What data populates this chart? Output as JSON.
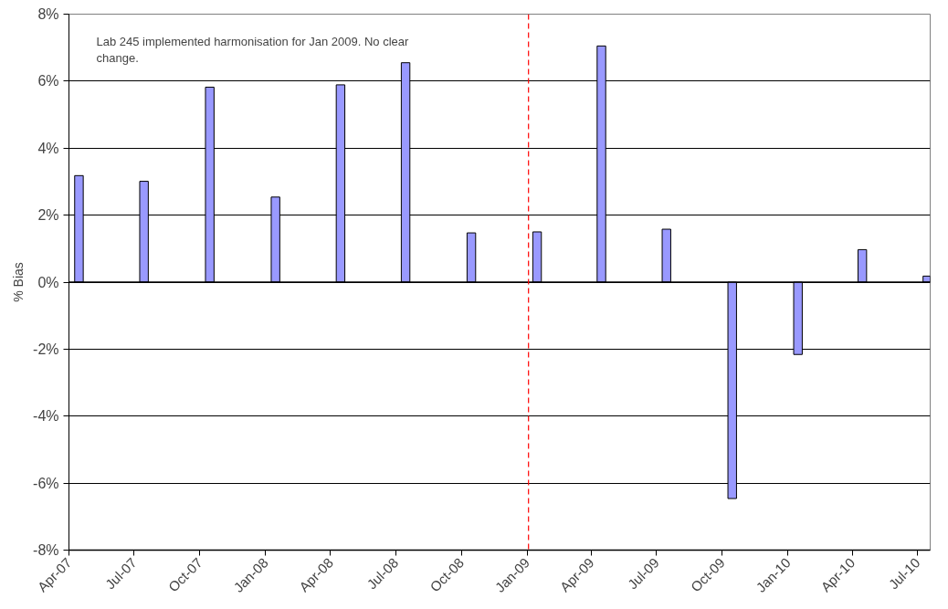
{
  "chart_data": {
    "type": "bar",
    "ylabel": "% Bias",
    "annotations": [
      "Lab 245 implemented harmonisation for Jan 2009. No clear change."
    ],
    "x": [
      "2007-04-15",
      "2007-07-15",
      "2007-10-15",
      "2008-01-15",
      "2008-04-15",
      "2008-07-15",
      "2008-10-15",
      "2009-01-15",
      "2009-04-15",
      "2009-07-15",
      "2009-10-15",
      "2010-01-15",
      "2010-04-15",
      "2010-07-15"
    ],
    "series": [
      {
        "color": "#9999ff",
        "values": [
          3.18,
          3.01,
          5.82,
          2.54,
          5.89,
          6.55,
          1.47,
          1.5,
          7.05,
          1.58,
          -6.46,
          -2.16,
          0.97,
          0.18
        ]
      }
    ],
    "xlim": [
      "2007-04-01",
      "2010-07-19"
    ],
    "xticks": [
      {
        "value": "2007-04-01",
        "label": "Apr-07"
      },
      {
        "value": "2007-07-01",
        "label": "Jul-07"
      },
      {
        "value": "2007-10-01",
        "label": "Oct-07"
      },
      {
        "value": "2008-01-01",
        "label": "Jan-08"
      },
      {
        "value": "2008-04-01",
        "label": "Apr-08"
      },
      {
        "value": "2008-07-01",
        "label": "Jul-08"
      },
      {
        "value": "2008-10-01",
        "label": "Oct-08"
      },
      {
        "value": "2009-01-01",
        "label": "Jan-09"
      },
      {
        "value": "2009-04-01",
        "label": "Apr-09"
      },
      {
        "value": "2009-07-01",
        "label": "Jul-09"
      },
      {
        "value": "2009-10-01",
        "label": "Oct-09"
      },
      {
        "value": "2010-01-01",
        "label": "Jan-10"
      },
      {
        "value": "2010-04-01",
        "label": "Apr-10"
      },
      {
        "value": "2010-07-01",
        "label": "Jul-10"
      }
    ],
    "ylim": [
      -8,
      8
    ],
    "yticks": [
      {
        "value": -8,
        "label": "-8%"
      },
      {
        "value": -6,
        "label": "-6%"
      },
      {
        "value": -4,
        "label": "-4%"
      },
      {
        "value": -2,
        "label": "-2%"
      },
      {
        "value": 0,
        "label": "0%"
      },
      {
        "value": 2,
        "label": "2%"
      },
      {
        "value": 4,
        "label": "4%"
      },
      {
        "value": 6,
        "label": "6%"
      },
      {
        "value": 8,
        "label": "8%"
      }
    ],
    "ref_lines": [
      {
        "axis": "x",
        "value": "2009-01-03",
        "color": "#ff0000",
        "line_style": "dashed"
      }
    ],
    "grid": "y"
  }
}
